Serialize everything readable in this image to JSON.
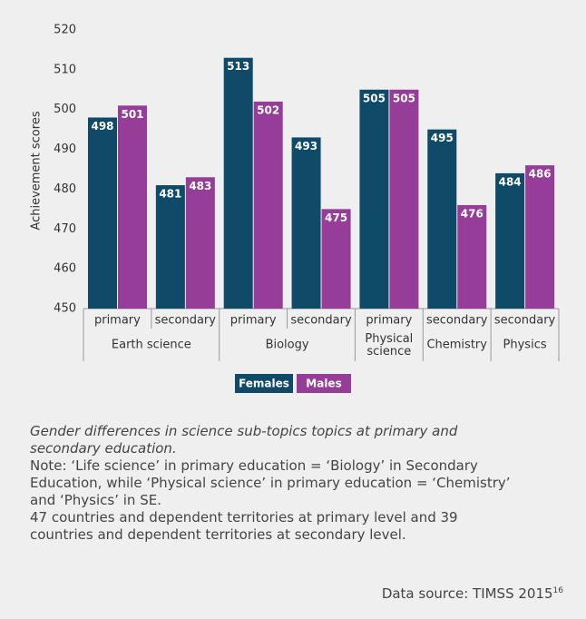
{
  "chart_data": {
    "type": "bar",
    "y_label": "Achievement scores",
    "categories": [
      "primary",
      "secondary",
      "primary",
      "secondary",
      "primary",
      "secondary",
      "secondary"
    ],
    "groups": [
      {
        "name": "Earth science",
        "size": 2
      },
      {
        "name": "Biology",
        "size": 2
      },
      {
        "name": "Physical science",
        "size": 1
      },
      {
        "name": "Chemistry",
        "size": 1
      },
      {
        "name": "Physics",
        "size": 1
      }
    ],
    "series": [
      {
        "name": "Females",
        "color": "#0f4a68",
        "values": [
          498,
          481,
          513,
          493,
          505,
          495,
          484
        ]
      },
      {
        "name": "Males",
        "color": "#953d99",
        "values": [
          501,
          483,
          502,
          475,
          505,
          476,
          486
        ]
      }
    ],
    "ylim": [
      450,
      520
    ],
    "yticks": [
      450,
      460,
      470,
      480,
      490,
      500,
      510,
      520
    ],
    "grid": false,
    "legend": "bottom"
  },
  "caption": {
    "title_lines": [
      "Gender differences in  science sub-topics topics at primary and",
      "secondary education."
    ],
    "note_lines": [
      "Note: ‘Life science’ in primary education = ‘Biology’ in Secondary",
      "Education, while ‘Physical science’ in primary education = ‘Chemistry’",
      "and ‘Physics’ in SE.",
      "47 countries and dependent territories at primary level and 39",
      "countries and  dependent territories at secondary level."
    ],
    "source": "Data source: TIMSS 2015",
    "source_ref": "16"
  }
}
